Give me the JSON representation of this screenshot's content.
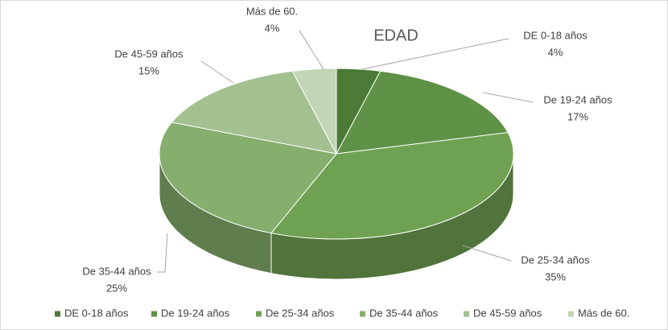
{
  "chart_data": {
    "type": "pie",
    "title": "EDAD",
    "categories": [
      "DE 0-18 años",
      "De 19-24 años",
      "De 25-34 años",
      "De 35-44 años",
      "De 45-59 años",
      "Más de 60."
    ],
    "values": [
      4,
      17,
      35,
      25,
      15,
      4
    ],
    "value_labels": [
      "4%",
      "17%",
      "35%",
      "25%",
      "15%",
      "4%"
    ],
    "colors": [
      "#4b7b36",
      "#5f9146",
      "#6fa152",
      "#86ae6d",
      "#a3c090",
      "#c2d5b4"
    ],
    "legend": "bottom"
  }
}
